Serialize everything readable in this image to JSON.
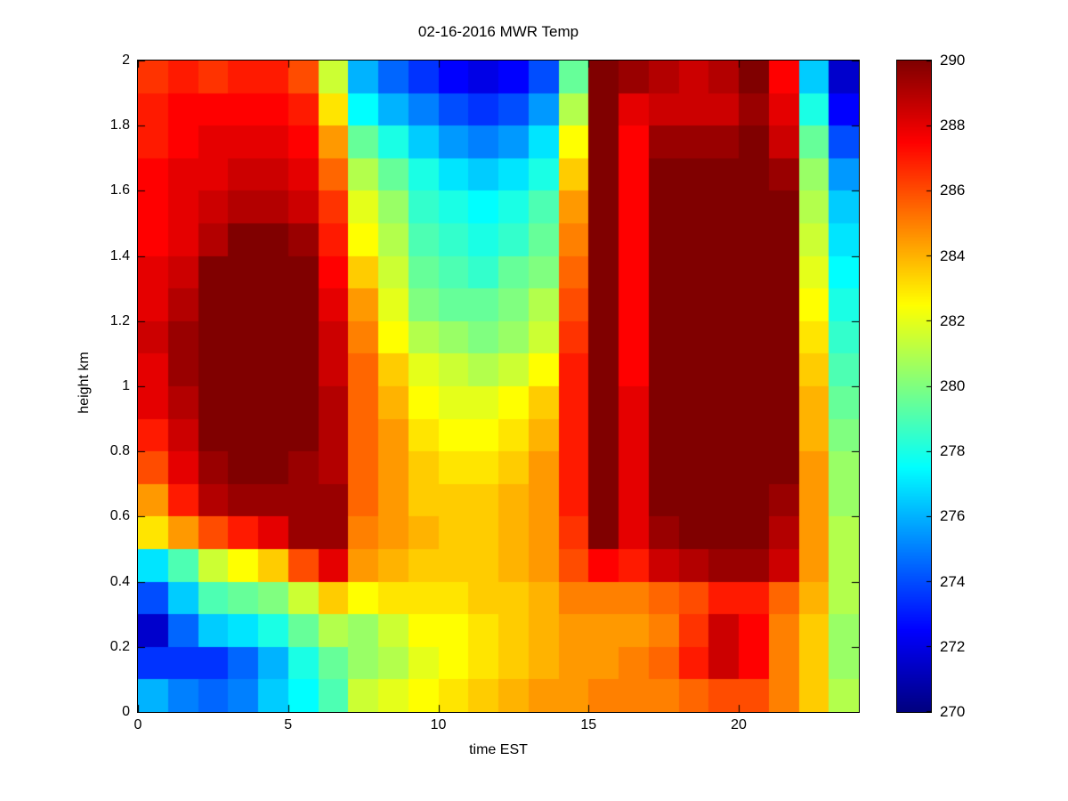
{
  "figure": {
    "background": "#ffffff",
    "axes_color": "#000000"
  },
  "chart_data": {
    "type": "heatmap",
    "title": "02-16-2016 MWR Temp",
    "xlabel": "time EST",
    "ylabel": "height km",
    "colormap": "jet",
    "clim": [
      270,
      290
    ],
    "x_range": [
      0,
      24
    ],
    "y_range": [
      0,
      2
    ],
    "x_ticks": [
      0,
      5,
      10,
      15,
      20
    ],
    "y_ticks": [
      0,
      0.2,
      0.4,
      0.6,
      0.8,
      1,
      1.2,
      1.4,
      1.6,
      1.8,
      2
    ],
    "colorbar_ticks": [
      270,
      272,
      274,
      276,
      278,
      280,
      282,
      284,
      286,
      288,
      290
    ],
    "n_cols": 24,
    "n_rows": 20,
    "row_order": "top_to_bottom",
    "row_heights_km_top_to_bottom": [
      2.0,
      1.9,
      1.8,
      1.7,
      1.6,
      1.5,
      1.4,
      1.3,
      1.2,
      1.1,
      1.0,
      0.9,
      0.8,
      0.7,
      0.6,
      0.5,
      0.4,
      0.3,
      0.2,
      0.1
    ],
    "values": [
      [
        286.5,
        287,
        286.5,
        287,
        287,
        286,
        281.5,
        276,
        274.5,
        273.5,
        272.5,
        272,
        272.5,
        274,
        279.5,
        290.5,
        289.5,
        289,
        288.5,
        289,
        290,
        287.5,
        276.5,
        271.5
      ],
      [
        287,
        287.5,
        287.5,
        287.5,
        287.5,
        287,
        283,
        277.5,
        276,
        275,
        274,
        273.5,
        274,
        275.5,
        281,
        290.5,
        288,
        288.5,
        288.5,
        288.5,
        289.5,
        288,
        278,
        272.5
      ],
      [
        287,
        287.5,
        288,
        288,
        288,
        287.5,
        284.5,
        279.5,
        278,
        276.5,
        275.5,
        275,
        275.5,
        277,
        282.5,
        290.5,
        287.5,
        289.5,
        289.5,
        289.5,
        290,
        288.5,
        279.5,
        274
      ],
      [
        287.5,
        288,
        288,
        288.5,
        288.5,
        288,
        285.5,
        281,
        279.5,
        278,
        277,
        276.5,
        277,
        278,
        283.5,
        290.5,
        287.5,
        290.5,
        290.5,
        290.5,
        290.5,
        289.5,
        280.5,
        275.5
      ],
      [
        287.5,
        288,
        288.5,
        289,
        289,
        288.5,
        286.5,
        282,
        280.5,
        278.5,
        278,
        277.5,
        278,
        279,
        284.5,
        290.5,
        287.5,
        290.5,
        290.5,
        290.5,
        290.5,
        290,
        281,
        276.5
      ],
      [
        287.5,
        288,
        289,
        290,
        290,
        289.5,
        287,
        282.5,
        281,
        279,
        278.5,
        278,
        278.5,
        279.5,
        285,
        290.5,
        287.5,
        290.5,
        290.5,
        290.5,
        290.5,
        290,
        281.5,
        277
      ],
      [
        288,
        288.5,
        290.5,
        290.5,
        290.5,
        290,
        287.5,
        283.5,
        281.5,
        279.5,
        279,
        278.5,
        279.5,
        280,
        285.5,
        290.5,
        287.5,
        290.5,
        290.5,
        290.5,
        290.5,
        290,
        282,
        277.5
      ],
      [
        288,
        289,
        290.5,
        290.5,
        290.5,
        290.5,
        288,
        284.5,
        282,
        280,
        279.5,
        279.5,
        280,
        281,
        286,
        290.5,
        287.5,
        290.5,
        290.5,
        290.5,
        290.5,
        290,
        282.5,
        278
      ],
      [
        288.5,
        289.5,
        290.5,
        290.5,
        290.5,
        290.5,
        288.5,
        285,
        282.5,
        281,
        280.5,
        280,
        280.5,
        281.5,
        286.5,
        290.5,
        287.5,
        290.5,
        290.5,
        290.5,
        290.5,
        290,
        283,
        278.5
      ],
      [
        288,
        289.5,
        290.5,
        290.5,
        290.5,
        290.5,
        288.5,
        285.5,
        283.5,
        282,
        281.5,
        281,
        281.5,
        282.5,
        287,
        290.5,
        287.5,
        290.5,
        290.5,
        290.5,
        290.5,
        290,
        283.5,
        279
      ],
      [
        288,
        289,
        290.5,
        290.5,
        290.5,
        290.5,
        289,
        285.5,
        284,
        282.5,
        282,
        282,
        282.5,
        283.5,
        287,
        290.5,
        288,
        290.5,
        290.5,
        290.5,
        290.5,
        290,
        284,
        279.5
      ],
      [
        287,
        288.5,
        290,
        290.5,
        290.5,
        290,
        289,
        285.5,
        284.5,
        283,
        282.5,
        282.5,
        283,
        284,
        287,
        290.5,
        288,
        290.5,
        290.5,
        290.5,
        290.5,
        290,
        284,
        280
      ],
      [
        286,
        288,
        289.5,
        290,
        290,
        289.5,
        289,
        285.5,
        284.5,
        283.5,
        283,
        283,
        283.5,
        284.5,
        287,
        290.5,
        288,
        290.5,
        290.5,
        290.5,
        290.5,
        290,
        284.5,
        280.5
      ],
      [
        284.5,
        287,
        289,
        289.5,
        289.5,
        289.5,
        289.5,
        285.5,
        284.5,
        283.5,
        283.5,
        283.5,
        284,
        284.5,
        287,
        290.5,
        288,
        290,
        290.5,
        290.5,
        290.5,
        289.5,
        284.5,
        280.5
      ],
      [
        283,
        284.5,
        286,
        287,
        288,
        289.5,
        289.5,
        285,
        284.5,
        284,
        283.5,
        283.5,
        284,
        284.5,
        286.5,
        290,
        288,
        289.5,
        290,
        290,
        290,
        289,
        284.5,
        281
      ],
      [
        277,
        279,
        281.5,
        282.5,
        283.5,
        286,
        288,
        284.5,
        284,
        283.5,
        283.5,
        283.5,
        284,
        284.5,
        286,
        287.5,
        287,
        288.5,
        289,
        289.5,
        289.5,
        288.5,
        284.5,
        281
      ],
      [
        274,
        276.5,
        279,
        279.5,
        280,
        281.5,
        283.5,
        282.5,
        283,
        283,
        283,
        283.5,
        283.5,
        284,
        285,
        285,
        285,
        285.5,
        286,
        287,
        287,
        285.5,
        284,
        281
      ],
      [
        271.5,
        274.5,
        276.5,
        277,
        278,
        279.5,
        281,
        280.5,
        281.5,
        282.5,
        282.5,
        283,
        283.5,
        284,
        284.5,
        284.5,
        284.5,
        285,
        286.5,
        288.5,
        287.5,
        285,
        283.5,
        280.5
      ],
      [
        273.5,
        273.5,
        273.5,
        274.5,
        276,
        278,
        279.5,
        280.5,
        281,
        282,
        282.5,
        283,
        283.5,
        284,
        284.5,
        284.5,
        285,
        285.5,
        287,
        288.5,
        287.5,
        285,
        283.5,
        280.5
      ],
      [
        276,
        275,
        274.5,
        275,
        276.5,
        277.5,
        279,
        281.5,
        282,
        282.5,
        283,
        283.5,
        284,
        284.5,
        284.5,
        285,
        285,
        285,
        285.5,
        286,
        286,
        285,
        283.5,
        281
      ]
    ]
  }
}
